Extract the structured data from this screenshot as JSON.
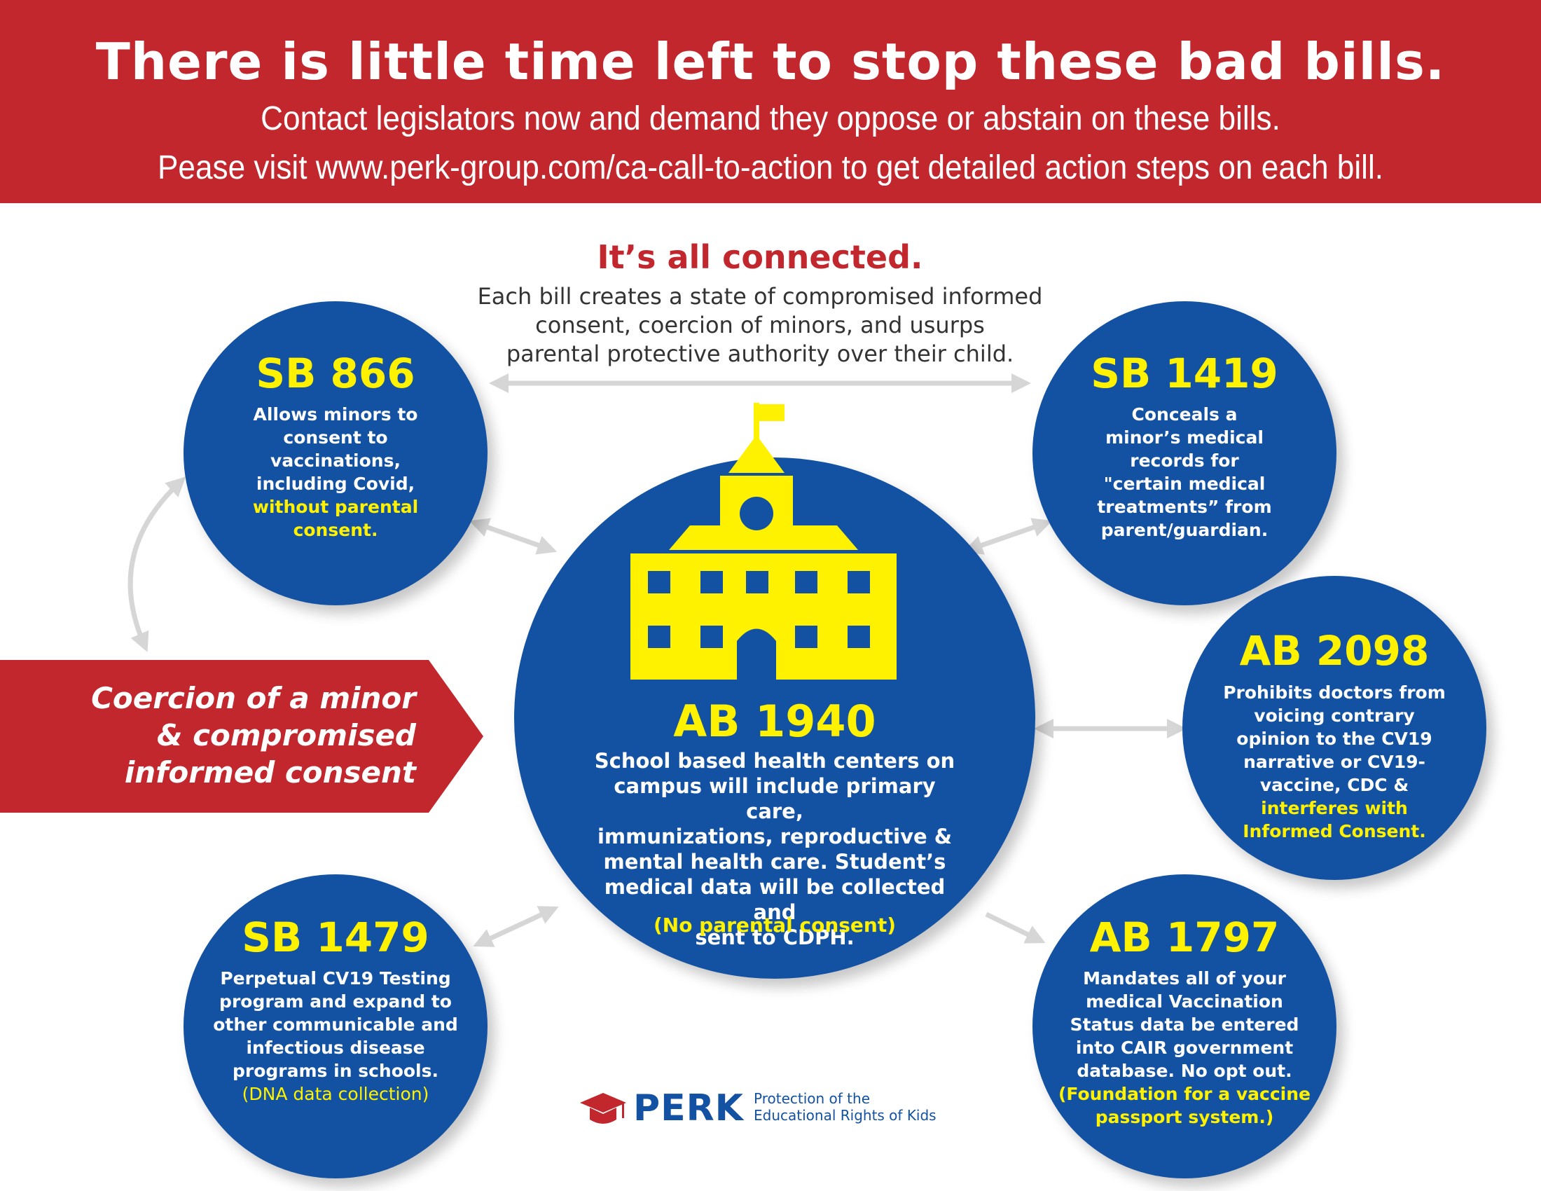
{
  "banner": {
    "title": "There is little time left to stop these bad bills.",
    "line1": "Contact legislators now and demand they oppose or abstain on these bills.",
    "line2": "Pease visit www.perk-group.com/ca-call-to-action to get detailed action steps on each bill."
  },
  "connected": {
    "title": "It’s all connected.",
    "line1": "Each bill creates a state of compromised informed",
    "line2": "consent, coercion of minors, and usurps",
    "line3": "parental protective authority over their child."
  },
  "coercion": {
    "line1": "Coercion of a minor",
    "line2": "& compromised",
    "line3": "informed consent"
  },
  "bills": {
    "sb866": {
      "name": "SB 866",
      "lines": [
        "Allows minors to",
        "consent to",
        "vaccinations,",
        "including Covid,"
      ],
      "highlight": [
        "without parental",
        "consent."
      ]
    },
    "sb1419": {
      "name": "SB 1419",
      "lines": [
        "Conceals a",
        "minor’s medical",
        "records for",
        "\"certain medical",
        "treatments” from",
        "parent/guardian."
      ]
    },
    "ab2098": {
      "name": "AB 2098",
      "lines": [
        "Prohibits doctors from",
        "voicing contrary",
        "opinion to the CV19",
        "narrative or CV19-",
        "vaccine, CDC &"
      ],
      "highlight": [
        "interferes with",
        "Informed Consent."
      ]
    },
    "sb1479": {
      "name": "SB 1479",
      "lines": [
        "Perpetual CV19 Testing",
        "program and expand to",
        "other communicable and",
        "infectious disease",
        "programs in schools."
      ],
      "highlight": [
        "(DNA data collection)"
      ]
    },
    "ab1797": {
      "name": "AB 1797",
      "lines": [
        "Mandates all of your",
        "medical Vaccination",
        "Status data be entered",
        "into CAIR government",
        "database. No opt out."
      ],
      "highlight": [
        "(Foundation for a  vaccine",
        "passport system.)"
      ]
    },
    "ab1940": {
      "name": "AB 1940",
      "lines": [
        "School based health centers on",
        "campus will include primary care,",
        "immunizations, reproductive &",
        "mental health care. Student’s",
        "medical data will be collected and",
        "sent to CDPH."
      ],
      "note": "(No parental consent)"
    }
  },
  "logo": {
    "name": "PERK",
    "tagline1": "Protection of the",
    "tagline2": "Educational Rights of Kids"
  },
  "colors": {
    "red": "#c1272d",
    "blue": "#1351a3",
    "yellow": "#fff200",
    "arrow": "#d6d6d6"
  }
}
